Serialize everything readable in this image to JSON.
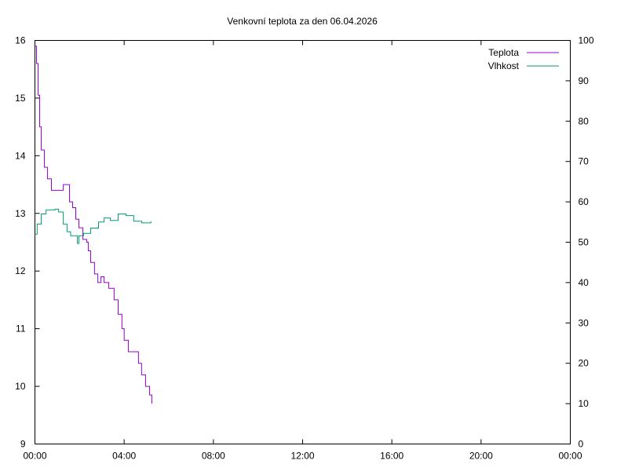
{
  "chart_data": {
    "type": "line",
    "title": "Venkovní teplota za den 06.04.2026",
    "xlabel": "",
    "ylabel": "",
    "y2label": "",
    "xlim": [
      0,
      24
    ],
    "ylim": [
      9,
      16
    ],
    "y2lim": [
      0,
      100
    ],
    "grid": false,
    "legend_position": "top-right",
    "x_ticks": [
      {
        "v": 0,
        "label": "00:00"
      },
      {
        "v": 4,
        "label": "04:00"
      },
      {
        "v": 8,
        "label": "08:00"
      },
      {
        "v": 12,
        "label": "12:00"
      },
      {
        "v": 16,
        "label": "16:00"
      },
      {
        "v": 20,
        "label": "20:00"
      },
      {
        "v": 24,
        "label": "00:00"
      }
    ],
    "y_ticks": [
      "9",
      "10",
      "11",
      "12",
      "13",
      "14",
      "15",
      "16"
    ],
    "y2_ticks": [
      "0",
      "10",
      "20",
      "30",
      "40",
      "50",
      "60",
      "70",
      "80",
      "90",
      "100"
    ],
    "series": [
      {
        "name": "Teplota",
        "axis": "y",
        "color": "#9400d3",
        "x": [
          0,
          0.07,
          0.14,
          0.21,
          0.28,
          0.42,
          0.56,
          0.74,
          1.1,
          1.27,
          1.41,
          1.55,
          1.69,
          1.83,
          1.97,
          2.15,
          2.32,
          2.39,
          2.5,
          2.67,
          2.82,
          2.96,
          3.1,
          3.31,
          3.45,
          3.55,
          3.73,
          3.9,
          4.0,
          4.19,
          4.5,
          4.64,
          4.78,
          4.96,
          5.14,
          5.24
        ],
        "y": [
          15.9,
          15.6,
          15.05,
          14.5,
          14.1,
          13.8,
          13.6,
          13.4,
          13.4,
          13.5,
          13.5,
          13.2,
          13.1,
          12.9,
          12.75,
          12.55,
          12.5,
          12.35,
          12.15,
          11.95,
          11.8,
          11.9,
          11.8,
          11.7,
          11.7,
          11.5,
          11.25,
          11.0,
          10.8,
          10.6,
          10.6,
          10.4,
          10.2,
          10.0,
          9.85,
          9.7
        ]
      },
      {
        "name": "Vlhkost",
        "axis": "y2",
        "color": "#009e73",
        "x": [
          0,
          0.1,
          0.28,
          0.5,
          0.9,
          1.06,
          1.27,
          1.44,
          1.6,
          1.83,
          1.9,
          1.97,
          2.18,
          2.5,
          2.85,
          3.1,
          3.38,
          3.73,
          4.08,
          4.43,
          4.79,
          5.2
        ],
        "y": [
          52,
          54.5,
          57,
          58,
          58.2,
          57.5,
          54.5,
          52.6,
          51.6,
          51.6,
          49.7,
          51.6,
          52.2,
          53.5,
          55,
          56,
          55.4,
          57,
          56.6,
          55.2,
          54.8,
          55.2
        ]
      }
    ]
  }
}
